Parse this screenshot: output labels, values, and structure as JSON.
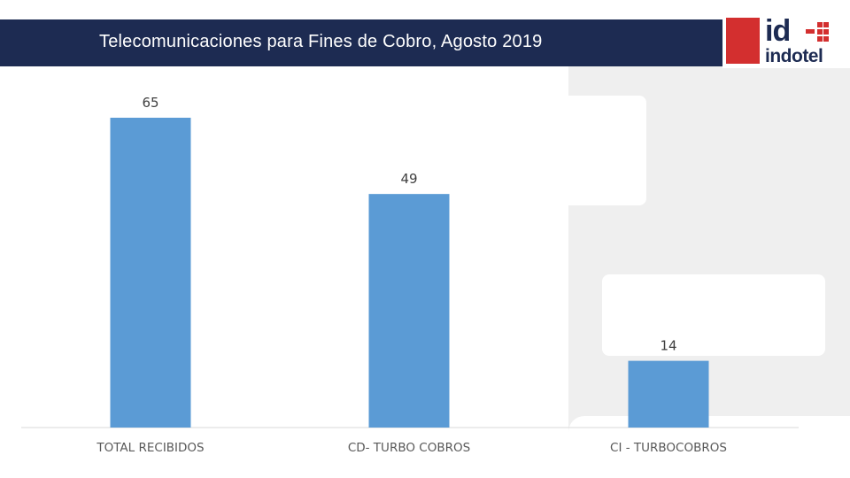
{
  "header": {
    "title": "Telecomunicaciones para Fines de Cobro, Agosto 2019"
  },
  "logo": {
    "mark_text": "id",
    "name_text": "indotel",
    "brand_red": "#d32f2f",
    "brand_navy": "#1d2b52"
  },
  "chart_data": {
    "type": "bar",
    "title": "Telecomunicaciones para Fines de Cobro, Agosto 2019",
    "categories": [
      "TOTAL RECIBIDOS",
      "CD- TURBO COBROS",
      "CI - TURBOCOBROS"
    ],
    "values": [
      65,
      49,
      14
    ],
    "data_labels": [
      "65",
      "49",
      "14"
    ],
    "xlabel": "",
    "ylabel": "",
    "ylim": [
      0,
      65
    ],
    "grid": false,
    "legend": "none",
    "bar_color": "#5b9bd5"
  }
}
